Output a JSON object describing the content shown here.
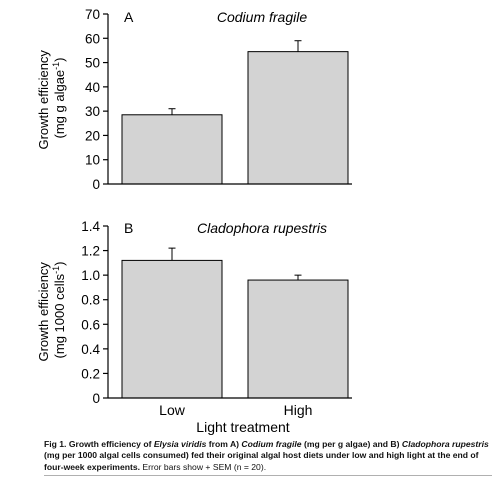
{
  "chart_data": [
    {
      "type": "bar",
      "panel_label": "A",
      "title": "Codium fragile",
      "ylabel_line1": "Growth efficiency",
      "ylabel_line2": "(mg g algae",
      "ylabel_sup": "-1",
      "ylabel_close": ")",
      "categories": [
        "Low",
        "High"
      ],
      "values": [
        28.5,
        54.5
      ],
      "errors": [
        2.5,
        4.5
      ],
      "ylim": [
        0,
        70
      ],
      "yticks": [
        0,
        10,
        20,
        30,
        40,
        50,
        60,
        70
      ],
      "ytick_labels": [
        "0",
        "10",
        "20",
        "30",
        "40",
        "50",
        "60",
        "70"
      ],
      "bar_color": "#d3d3d3",
      "grid": false
    },
    {
      "type": "bar",
      "panel_label": "B",
      "title": "Cladophora rupestris",
      "ylabel_line1": "Growth efficiency",
      "ylabel_line2": "(mg 1000 cells",
      "ylabel_sup": "-1",
      "ylabel_close": ")",
      "xlabel": "Light treatment",
      "categories": [
        "Low",
        "High"
      ],
      "values": [
        1.12,
        0.96
      ],
      "errors": [
        0.1,
        0.04
      ],
      "ylim": [
        0,
        1.4
      ],
      "yticks": [
        0,
        0.2,
        0.4,
        0.6,
        0.8,
        1.0,
        1.2,
        1.4
      ],
      "ytick_labels": [
        "0",
        "0.2",
        "0.4",
        "0.6",
        "0.8",
        "1.0",
        "1.2",
        "1.4"
      ],
      "bar_color": "#d3d3d3",
      "grid": false
    }
  ],
  "caption": {
    "p1": "Fig 1. Growth efficiency of ",
    "species": "Elysia viridis",
    "p2": " from A) ",
    "alga_a": "Codium fragile",
    "p3": " (mg per g algae) and B) ",
    "alga_b": "Cladophora rupestris",
    "p4": " (mg per 1000 algal cells consumed) fed their original algal host diets under low and high light at the end of four-week experiments.",
    "p5": " Error bars show + SEM (n = 20)."
  }
}
